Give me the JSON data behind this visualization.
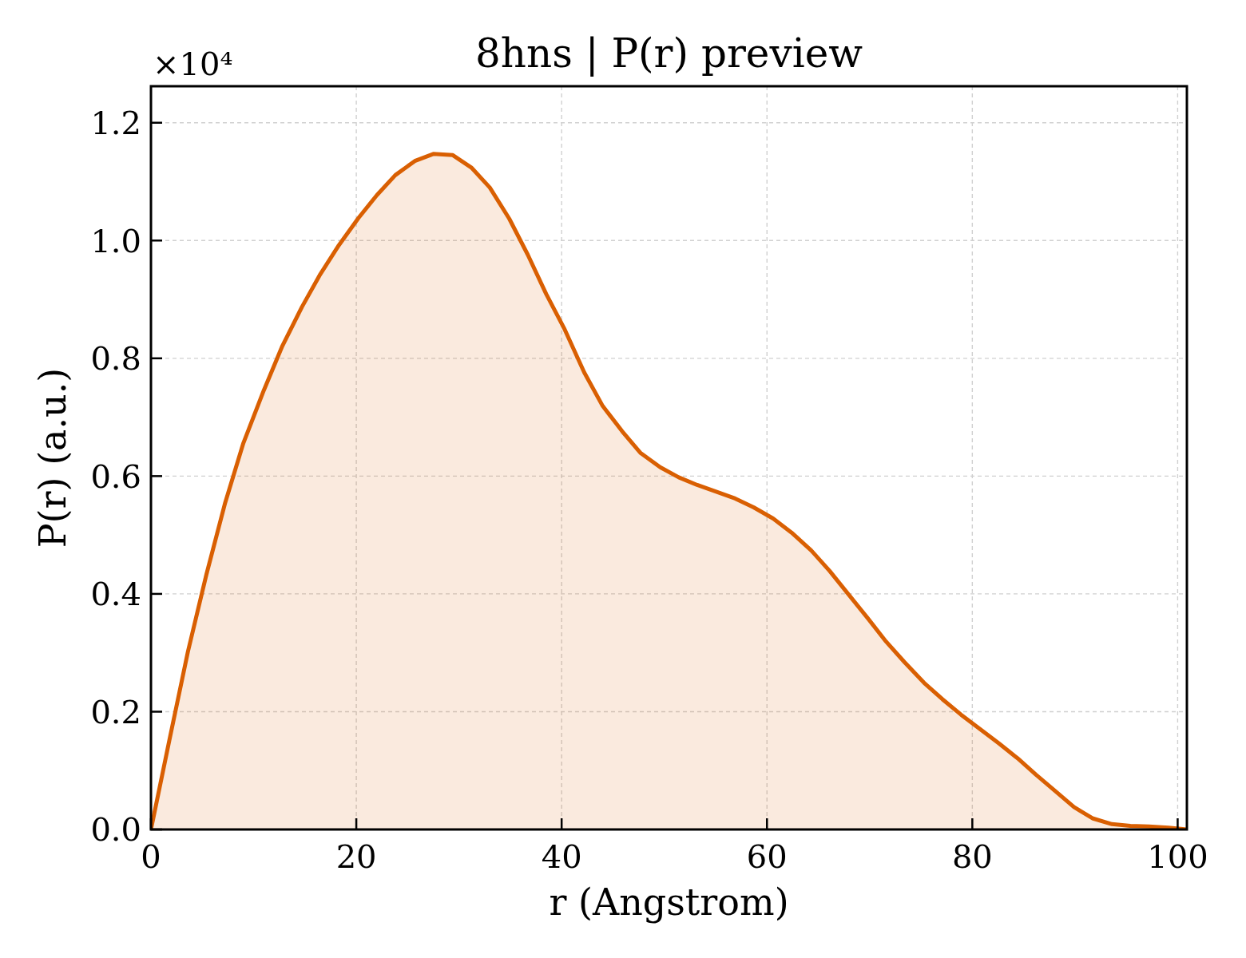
{
  "chart_data": {
    "type": "area",
    "title": "8hns | P(r) preview",
    "xlabel": "r (Angstrom)",
    "ylabel": "P(r) (a.u.)",
    "annotations": [
      "×10⁴"
    ],
    "x": [
      0,
      1.8,
      3.6,
      5.4,
      7.2,
      9.0,
      11.0,
      12.8,
      14.7,
      16.5,
      18.3,
      20.2,
      22.0,
      23.8,
      25.7,
      27.5,
      29.4,
      31.2,
      33.0,
      34.9,
      36.7,
      38.5,
      40.3,
      42.2,
      44.0,
      45.9,
      47.7,
      49.6,
      51.4,
      53.2,
      55.0,
      56.9,
      58.7,
      60.6,
      62.4,
      64.3,
      66.1,
      67.9,
      69.8,
      71.6,
      73.4,
      75.3,
      77.1,
      78.9,
      80.7,
      82.6,
      84.4,
      86.2,
      88.1,
      89.9,
      91.7,
      93.6,
      95.4,
      97.2,
      99.1,
      100.9
    ],
    "series": [
      {
        "color": "#d95f02",
        "values": [
          0,
          0.152,
          0.302,
          0.433,
          0.553,
          0.656,
          0.746,
          0.821,
          0.887,
          0.943,
          0.992,
          1.038,
          1.077,
          1.111,
          1.135,
          1.147,
          1.145,
          1.124,
          1.09,
          1.037,
          0.976,
          0.909,
          0.849,
          0.776,
          0.719,
          0.676,
          0.639,
          0.615,
          0.598,
          0.585,
          0.574,
          0.562,
          0.547,
          0.528,
          0.504,
          0.474,
          0.439,
          0.4,
          0.359,
          0.319,
          0.284,
          0.249,
          0.221,
          0.195,
          0.171,
          0.146,
          0.121,
          0.093,
          0.065,
          0.038,
          0.019,
          0.009,
          0.006,
          0.005,
          0.003,
          0
        ]
      }
    ],
    "xlim": [
      0,
      100.9
    ],
    "ylim": [
      0,
      1.262
    ],
    "xticks": [
      0,
      20,
      40,
      60,
      80,
      100
    ],
    "yticks": [
      {
        "value": 0,
        "label": "0.0"
      },
      0.2,
      0.4,
      0.6,
      0.8,
      {
        "value": 1,
        "label": "1.0"
      },
      1.2
    ],
    "grid": true
  }
}
